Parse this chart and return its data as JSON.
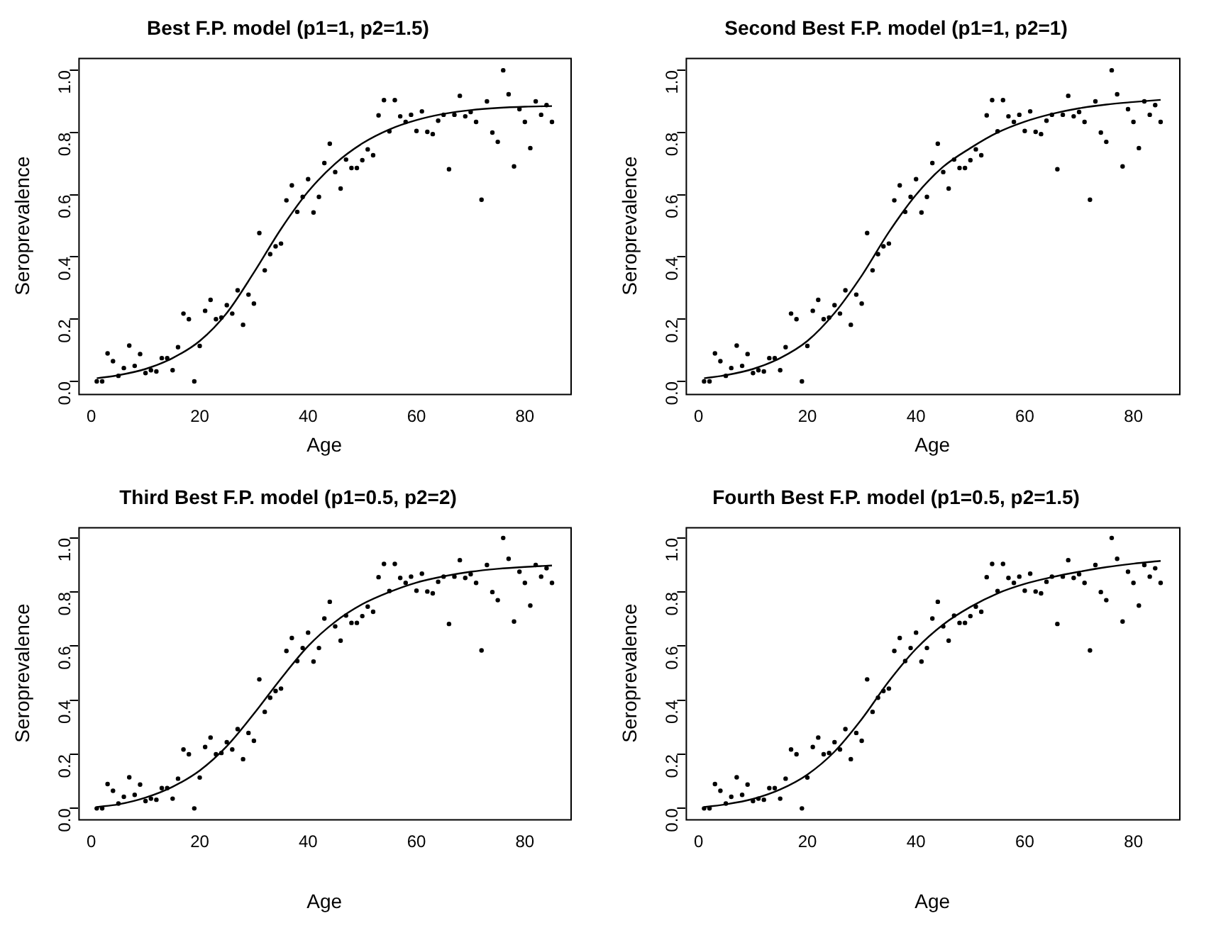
{
  "chart_data": [
    {
      "type": "scatter",
      "title": "Best F.P. model (p1=1, p2=1.5)",
      "xlabel": "Age",
      "ylabel": "Seroprevalence",
      "xlim": [
        -2.4,
        88.4
      ],
      "ylim": [
        -0.04,
        1.04
      ],
      "xticks": [
        0,
        20,
        40,
        60,
        80
      ],
      "yticks": [
        {
          "value": 0,
          "label": "0.0"
        },
        {
          "value": 0.2,
          "label": "0.2"
        },
        {
          "value": 0.4,
          "label": "0.4"
        },
        {
          "value": 0.6,
          "label": "0.6"
        },
        {
          "value": 0.8,
          "label": "0.8"
        },
        {
          "value": 1,
          "label": "1.0"
        }
      ],
      "grid": false,
      "legend": false,
      "marker": "circle",
      "series": [
        {
          "type": "scatter",
          "color": "#000000",
          "x": [
            1,
            2,
            3,
            4,
            5,
            6,
            7,
            8,
            9,
            10,
            11,
            12,
            13,
            14,
            15,
            16,
            17,
            18,
            19,
            20,
            21,
            22,
            23,
            24,
            25,
            26,
            27,
            28,
            29,
            30,
            31,
            32,
            33,
            34,
            35,
            36,
            37,
            38,
            39,
            40,
            41,
            42,
            43,
            44,
            45,
            46,
            47,
            48,
            49,
            50,
            51,
            52,
            53,
            54,
            55,
            56,
            57,
            58,
            59,
            60,
            61,
            62,
            63,
            64,
            65,
            66,
            67,
            68,
            69,
            70,
            71,
            72,
            73,
            74,
            75,
            76,
            77,
            78,
            79,
            80,
            81,
            82,
            83,
            84,
            85
          ],
          "values": [
            0,
            0,
            0.09,
            0.065,
            0.018,
            0.043,
            0.115,
            0.05,
            0.088,
            0.027,
            0.036,
            0.032,
            0.075,
            0.075,
            0.036,
            0.11,
            0.218,
            0.2,
            0,
            0.114,
            0.227,
            0.262,
            0.2,
            0.205,
            0.245,
            0.218,
            0.293,
            0.182,
            0.279,
            0.25,
            0.477,
            0.357,
            0.409,
            0.434,
            0.443,
            0.582,
            0.63,
            0.545,
            0.593,
            0.65,
            0.543,
            0.593,
            0.702,
            0.764,
            0.673,
            0.62,
            0.713,
            0.686,
            0.686,
            0.711,
            0.746,
            0.727,
            0.855,
            0.904,
            0.804,
            0.904,
            0.852,
            0.834,
            0.857,
            0.805,
            0.868,
            0.802,
            0.795,
            0.838,
            0.857,
            0.682,
            0.857,
            0.918,
            0.852,
            0.866,
            0.834,
            0.584,
            0.9,
            0.8,
            0.77,
            1,
            0.923,
            0.691,
            0.875,
            0.834,
            0.75,
            0.9,
            0.857,
            0.888,
            0.834
          ]
        },
        {
          "type": "line",
          "color": "#000000",
          "x": [
            1,
            5,
            10,
            15,
            20,
            25,
            30,
            35,
            40,
            45,
            50,
            55,
            60,
            65,
            70,
            75,
            80,
            85
          ],
          "values": [
            0.01,
            0.02,
            0.04,
            0.075,
            0.13,
            0.22,
            0.35,
            0.49,
            0.61,
            0.7,
            0.765,
            0.81,
            0.84,
            0.86,
            0.872,
            0.879,
            0.883,
            0.885
          ],
          "marker": "none"
        }
      ]
    },
    {
      "type": "scatter",
      "title": "Second Best F.P. model (p1=1, p2=1)",
      "xlabel": "Age",
      "ylabel": "Seroprevalence",
      "xlim": [
        -2.4,
        88.4
      ],
      "ylim": [
        -0.04,
        1.04
      ],
      "xticks": [
        0,
        20,
        40,
        60,
        80
      ],
      "yticks": [
        {
          "value": 0,
          "label": "0.0"
        },
        {
          "value": 0.2,
          "label": "0.2"
        },
        {
          "value": 0.4,
          "label": "0.4"
        },
        {
          "value": 0.6,
          "label": "0.6"
        },
        {
          "value": 0.8,
          "label": "0.8"
        },
        {
          "value": 1,
          "label": "1.0"
        }
      ],
      "grid": false,
      "legend": false,
      "marker": "circle",
      "series": [
        {
          "type": "scatter",
          "color": "#000000",
          "x": [
            1,
            2,
            3,
            4,
            5,
            6,
            7,
            8,
            9,
            10,
            11,
            12,
            13,
            14,
            15,
            16,
            17,
            18,
            19,
            20,
            21,
            22,
            23,
            24,
            25,
            26,
            27,
            28,
            29,
            30,
            31,
            32,
            33,
            34,
            35,
            36,
            37,
            38,
            39,
            40,
            41,
            42,
            43,
            44,
            45,
            46,
            47,
            48,
            49,
            50,
            51,
            52,
            53,
            54,
            55,
            56,
            57,
            58,
            59,
            60,
            61,
            62,
            63,
            64,
            65,
            66,
            67,
            68,
            69,
            70,
            71,
            72,
            73,
            74,
            75,
            76,
            77,
            78,
            79,
            80,
            81,
            82,
            83,
            84,
            85
          ],
          "values": [
            0,
            0,
            0.09,
            0.065,
            0.018,
            0.043,
            0.115,
            0.05,
            0.088,
            0.027,
            0.036,
            0.032,
            0.075,
            0.075,
            0.036,
            0.11,
            0.218,
            0.2,
            0,
            0.114,
            0.227,
            0.262,
            0.2,
            0.205,
            0.245,
            0.218,
            0.293,
            0.182,
            0.279,
            0.25,
            0.477,
            0.357,
            0.409,
            0.434,
            0.443,
            0.582,
            0.63,
            0.545,
            0.593,
            0.65,
            0.543,
            0.593,
            0.702,
            0.764,
            0.673,
            0.62,
            0.713,
            0.686,
            0.686,
            0.711,
            0.746,
            0.727,
            0.855,
            0.904,
            0.804,
            0.904,
            0.852,
            0.834,
            0.857,
            0.805,
            0.868,
            0.802,
            0.795,
            0.838,
            0.857,
            0.682,
            0.857,
            0.918,
            0.852,
            0.866,
            0.834,
            0.584,
            0.9,
            0.8,
            0.77,
            1,
            0.923,
            0.691,
            0.875,
            0.834,
            0.75,
            0.9,
            0.857,
            0.888,
            0.834
          ]
        },
        {
          "type": "line",
          "color": "#000000",
          "x": [
            1,
            5,
            10,
            15,
            20,
            25,
            30,
            35,
            40,
            45,
            50,
            55,
            60,
            65,
            70,
            75,
            80,
            85
          ],
          "values": [
            0.01,
            0.02,
            0.04,
            0.075,
            0.13,
            0.22,
            0.34,
            0.48,
            0.6,
            0.69,
            0.75,
            0.8,
            0.835,
            0.86,
            0.878,
            0.89,
            0.898,
            0.905
          ],
          "marker": "none"
        }
      ]
    },
    {
      "type": "scatter",
      "title": "Third Best F.P. model (p1=0.5, p2=2)",
      "xlabel": "Age",
      "ylabel": "Seroprevalence",
      "xlim": [
        -2.4,
        88.4
      ],
      "ylim": [
        -0.04,
        1.04
      ],
      "xticks": [
        0,
        20,
        40,
        60,
        80
      ],
      "yticks": [
        {
          "value": 0,
          "label": "0.0"
        },
        {
          "value": 0.2,
          "label": "0.2"
        },
        {
          "value": 0.4,
          "label": "0.4"
        },
        {
          "value": 0.6,
          "label": "0.6"
        },
        {
          "value": 0.8,
          "label": "0.8"
        },
        {
          "value": 1,
          "label": "1.0"
        }
      ],
      "grid": false,
      "legend": false,
      "marker": "circle",
      "series": [
        {
          "type": "scatter",
          "color": "#000000",
          "x": [
            1,
            2,
            3,
            4,
            5,
            6,
            7,
            8,
            9,
            10,
            11,
            12,
            13,
            14,
            15,
            16,
            17,
            18,
            19,
            20,
            21,
            22,
            23,
            24,
            25,
            26,
            27,
            28,
            29,
            30,
            31,
            32,
            33,
            34,
            35,
            36,
            37,
            38,
            39,
            40,
            41,
            42,
            43,
            44,
            45,
            46,
            47,
            48,
            49,
            50,
            51,
            52,
            53,
            54,
            55,
            56,
            57,
            58,
            59,
            60,
            61,
            62,
            63,
            64,
            65,
            66,
            67,
            68,
            69,
            70,
            71,
            72,
            73,
            74,
            75,
            76,
            77,
            78,
            79,
            80,
            81,
            82,
            83,
            84,
            85
          ],
          "values": [
            0,
            0,
            0.09,
            0.065,
            0.018,
            0.043,
            0.115,
            0.05,
            0.088,
            0.027,
            0.036,
            0.032,
            0.075,
            0.075,
            0.036,
            0.11,
            0.218,
            0.2,
            0,
            0.114,
            0.227,
            0.262,
            0.2,
            0.205,
            0.245,
            0.218,
            0.293,
            0.182,
            0.279,
            0.25,
            0.477,
            0.357,
            0.409,
            0.434,
            0.443,
            0.582,
            0.63,
            0.545,
            0.593,
            0.65,
            0.543,
            0.593,
            0.702,
            0.764,
            0.673,
            0.62,
            0.713,
            0.686,
            0.686,
            0.711,
            0.746,
            0.727,
            0.855,
            0.904,
            0.804,
            0.904,
            0.852,
            0.834,
            0.857,
            0.805,
            0.868,
            0.802,
            0.795,
            0.838,
            0.857,
            0.682,
            0.857,
            0.918,
            0.852,
            0.866,
            0.834,
            0.584,
            0.9,
            0.8,
            0.77,
            1,
            0.923,
            0.691,
            0.875,
            0.834,
            0.75,
            0.9,
            0.857,
            0.888,
            0.834
          ]
        },
        {
          "type": "line",
          "color": "#000000",
          "x": [
            1,
            5,
            10,
            15,
            20,
            25,
            30,
            35,
            40,
            45,
            50,
            55,
            60,
            65,
            70,
            75,
            80,
            85
          ],
          "values": [
            0.005,
            0.015,
            0.04,
            0.08,
            0.14,
            0.23,
            0.35,
            0.48,
            0.6,
            0.69,
            0.755,
            0.8,
            0.835,
            0.858,
            0.875,
            0.886,
            0.893,
            0.898
          ],
          "marker": "none"
        }
      ]
    },
    {
      "type": "scatter",
      "title": "Fourth Best F.P. model (p1=0.5, p2=1.5)",
      "xlabel": "Age",
      "ylabel": "Seroprevalence",
      "xlim": [
        -2.4,
        88.4
      ],
      "ylim": [
        -0.04,
        1.04
      ],
      "xticks": [
        0,
        20,
        40,
        60,
        80
      ],
      "yticks": [
        {
          "value": 0,
          "label": "0.0"
        },
        {
          "value": 0.2,
          "label": "0.2"
        },
        {
          "value": 0.4,
          "label": "0.4"
        },
        {
          "value": 0.6,
          "label": "0.6"
        },
        {
          "value": 0.8,
          "label": "0.8"
        },
        {
          "value": 1,
          "label": "1.0"
        }
      ],
      "grid": false,
      "legend": false,
      "marker": "circle",
      "series": [
        {
          "type": "scatter",
          "color": "#000000",
          "x": [
            1,
            2,
            3,
            4,
            5,
            6,
            7,
            8,
            9,
            10,
            11,
            12,
            13,
            14,
            15,
            16,
            17,
            18,
            19,
            20,
            21,
            22,
            23,
            24,
            25,
            26,
            27,
            28,
            29,
            30,
            31,
            32,
            33,
            34,
            35,
            36,
            37,
            38,
            39,
            40,
            41,
            42,
            43,
            44,
            45,
            46,
            47,
            48,
            49,
            50,
            51,
            52,
            53,
            54,
            55,
            56,
            57,
            58,
            59,
            60,
            61,
            62,
            63,
            64,
            65,
            66,
            67,
            68,
            69,
            70,
            71,
            72,
            73,
            74,
            75,
            76,
            77,
            78,
            79,
            80,
            81,
            82,
            83,
            84,
            85
          ],
          "values": [
            0,
            0,
            0.09,
            0.065,
            0.018,
            0.043,
            0.115,
            0.05,
            0.088,
            0.027,
            0.036,
            0.032,
            0.075,
            0.075,
            0.036,
            0.11,
            0.218,
            0.2,
            0,
            0.114,
            0.227,
            0.262,
            0.2,
            0.205,
            0.245,
            0.218,
            0.293,
            0.182,
            0.279,
            0.25,
            0.477,
            0.357,
            0.409,
            0.434,
            0.443,
            0.582,
            0.63,
            0.545,
            0.593,
            0.65,
            0.543,
            0.593,
            0.702,
            0.764,
            0.673,
            0.62,
            0.713,
            0.686,
            0.686,
            0.711,
            0.746,
            0.727,
            0.855,
            0.904,
            0.804,
            0.904,
            0.852,
            0.834,
            0.857,
            0.805,
            0.868,
            0.802,
            0.795,
            0.838,
            0.857,
            0.682,
            0.857,
            0.918,
            0.852,
            0.866,
            0.834,
            0.584,
            0.9,
            0.8,
            0.77,
            1,
            0.923,
            0.691,
            0.875,
            0.834,
            0.75,
            0.9,
            0.857,
            0.888,
            0.834
          ]
        },
        {
          "type": "line",
          "color": "#000000",
          "x": [
            1,
            5,
            10,
            15,
            20,
            25,
            30,
            35,
            40,
            45,
            50,
            55,
            60,
            65,
            70,
            75,
            80,
            85
          ],
          "values": [
            0.005,
            0.015,
            0.035,
            0.07,
            0.125,
            0.21,
            0.33,
            0.47,
            0.59,
            0.68,
            0.745,
            0.795,
            0.83,
            0.855,
            0.875,
            0.892,
            0.905,
            0.915
          ],
          "marker": "none"
        }
      ]
    }
  ]
}
